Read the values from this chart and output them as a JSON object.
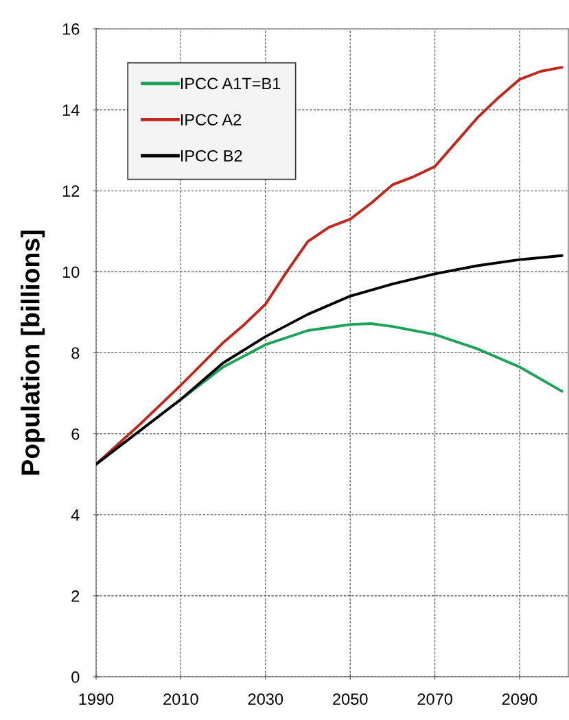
{
  "chart_data": {
    "type": "line",
    "ylabel": "Population [billions]",
    "xlim": [
      1990,
      2101.5
    ],
    "xticks": [
      1990,
      2010,
      2030,
      2050,
      2070,
      2090
    ],
    "ylim": [
      0,
      16
    ],
    "yticks": [
      0,
      2,
      4,
      6,
      8,
      10,
      12,
      14,
      16
    ],
    "grid": true,
    "legend": "top left",
    "line_style": "solid",
    "marker": "none",
    "series": [
      {
        "name": "IPCC A1T=B1",
        "color": "#1ba35a",
        "x": [
          1990,
          2000,
          2010,
          2020,
          2030,
          2040,
          2050,
          2055,
          2060,
          2070,
          2080,
          2090,
          2100
        ],
        "values": [
          5.25,
          6.05,
          6.85,
          7.65,
          8.2,
          8.55,
          8.7,
          8.72,
          8.65,
          8.45,
          8.1,
          7.65,
          7.05
        ]
      },
      {
        "name": "IPCC A2",
        "color": "#c0281c",
        "x": [
          1990,
          2000,
          2010,
          2020,
          2025,
          2030,
          2035,
          2040,
          2045,
          2050,
          2055,
          2060,
          2065,
          2070,
          2075,
          2080,
          2085,
          2090,
          2095,
          2100
        ],
        "values": [
          5.25,
          6.2,
          7.2,
          8.25,
          8.7,
          9.2,
          10.0,
          10.75,
          11.1,
          11.3,
          11.7,
          12.15,
          12.35,
          12.6,
          13.2,
          13.8,
          14.3,
          14.75,
          14.95,
          15.05
        ]
      },
      {
        "name": "IPCC B2",
        "color": "#000000",
        "x": [
          1990,
          2000,
          2010,
          2020,
          2030,
          2040,
          2050,
          2060,
          2070,
          2080,
          2090,
          2100
        ],
        "values": [
          5.25,
          6.05,
          6.85,
          7.75,
          8.4,
          8.95,
          9.4,
          9.7,
          9.95,
          10.15,
          10.3,
          10.4
        ]
      }
    ]
  }
}
